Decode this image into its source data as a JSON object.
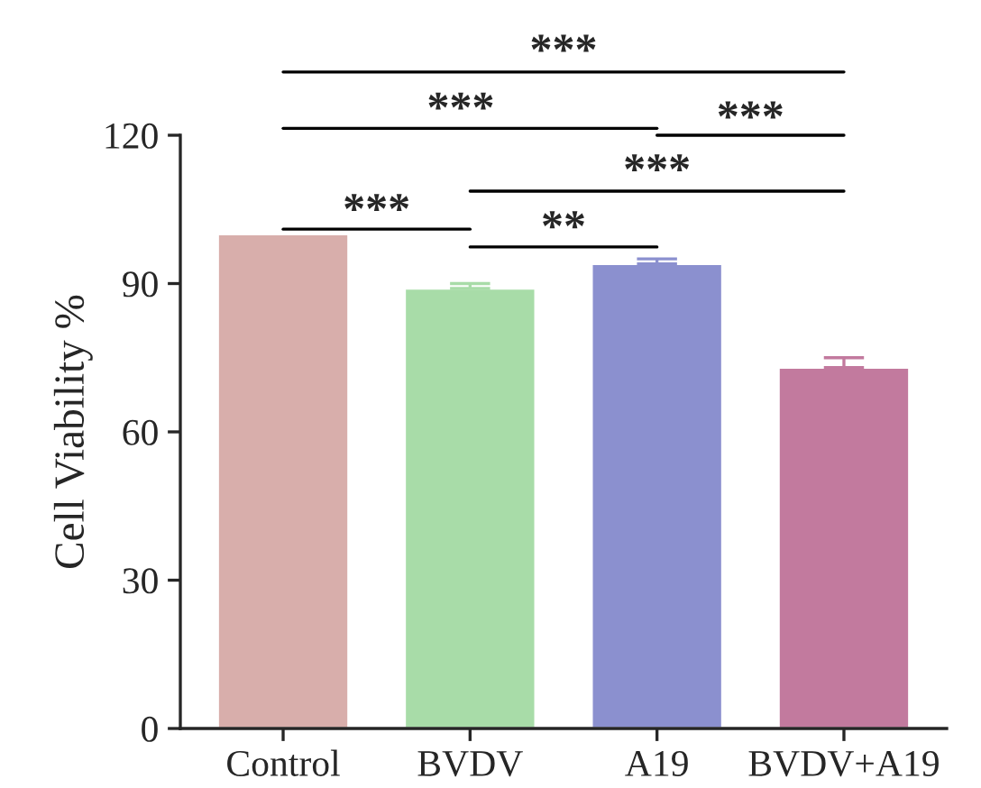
{
  "chart_data": {
    "type": "bar",
    "ylabel": "Cell Viability %",
    "categories": [
      "Control",
      "BVDV",
      "A19",
      "BVDV+A19"
    ],
    "values": [
      100,
      89,
      94,
      73
    ],
    "errors": [
      null,
      1,
      1,
      2
    ],
    "colors": [
      "#d8aeab",
      "#a8dca8",
      "#8b90cf",
      "#c27a9e"
    ],
    "ylim": [
      0,
      120
    ],
    "yticks": [
      0,
      30,
      60,
      90,
      120
    ],
    "grid": false,
    "annotations": [
      "***",
      "***",
      "***",
      "***",
      "***",
      "**"
    ]
  }
}
